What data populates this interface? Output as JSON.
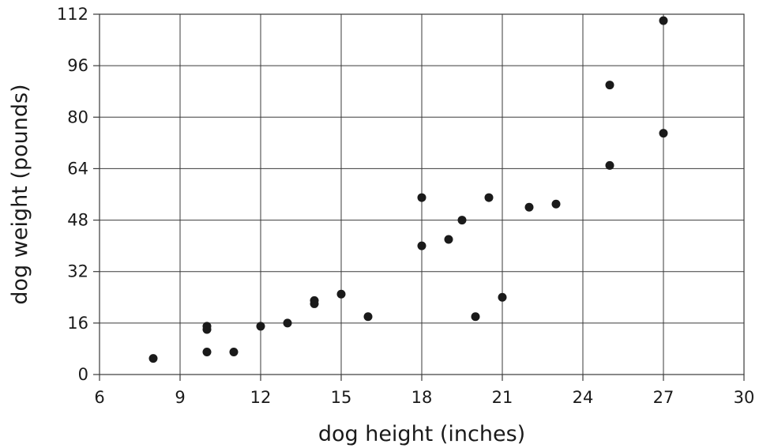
{
  "chart_data": {
    "type": "scatter",
    "title": "",
    "xlabel": "dog height (inches)",
    "ylabel": "dog weight (pounds)",
    "xlim": [
      6,
      30
    ],
    "ylim": [
      0,
      112
    ],
    "xticks": [
      6,
      9,
      12,
      15,
      18,
      21,
      24,
      27,
      30
    ],
    "yticks": [
      0,
      16,
      32,
      48,
      64,
      80,
      96,
      112
    ],
    "grid": true,
    "legend": "none",
    "point_color": "#1a1a1a",
    "points": [
      {
        "x": 8,
        "y": 5
      },
      {
        "x": 10,
        "y": 7
      },
      {
        "x": 10,
        "y": 14
      },
      {
        "x": 10,
        "y": 15
      },
      {
        "x": 11,
        "y": 7
      },
      {
        "x": 12,
        "y": 15
      },
      {
        "x": 13,
        "y": 16
      },
      {
        "x": 14,
        "y": 22
      },
      {
        "x": 14,
        "y": 23
      },
      {
        "x": 15,
        "y": 25
      },
      {
        "x": 16,
        "y": 18
      },
      {
        "x": 18,
        "y": 40
      },
      {
        "x": 18,
        "y": 55
      },
      {
        "x": 19,
        "y": 42
      },
      {
        "x": 19.5,
        "y": 48
      },
      {
        "x": 20,
        "y": 18
      },
      {
        "x": 20.5,
        "y": 55
      },
      {
        "x": 21,
        "y": 24
      },
      {
        "x": 22,
        "y": 52
      },
      {
        "x": 23,
        "y": 53
      },
      {
        "x": 25,
        "y": 65
      },
      {
        "x": 25,
        "y": 90
      },
      {
        "x": 27,
        "y": 75
      },
      {
        "x": 27,
        "y": 110
      }
    ]
  }
}
